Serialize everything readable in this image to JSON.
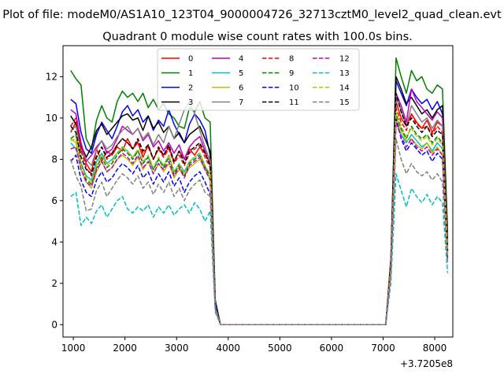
{
  "chart_data": {
    "type": "line",
    "suptitle": "Plot of file: modeM0/AS1A10_123T04_9000004726_32713cztM0_level2_quad_clean.evt",
    "title": "Quadrant 0 module wise count rates with 100.0s bins.",
    "xlabel": "",
    "ylabel": "",
    "x_offset_label": "+3.7205e8",
    "xlim": [
      800,
      8350
    ],
    "ylim": [
      -0.6,
      13.5
    ],
    "xticks": [
      1000,
      2000,
      3000,
      4000,
      5000,
      6000,
      7000,
      8000
    ],
    "xtick_labels": [
      "1000",
      "2000",
      "3000",
      "4000",
      "5000",
      "6000",
      "7000",
      "8000"
    ],
    "yticks": [
      0,
      2,
      4,
      6,
      8,
      10,
      12
    ],
    "ytick_labels": [
      "0",
      "2",
      "4",
      "6",
      "8",
      "10",
      "12"
    ],
    "grid": false,
    "legend": {
      "placement": "top-center",
      "columns": 4
    },
    "x": [
      950,
      1050,
      1150,
      1250,
      1350,
      1450,
      1550,
      1650,
      1750,
      1850,
      1950,
      2050,
      2150,
      2250,
      2350,
      2450,
      2550,
      2650,
      2750,
      2850,
      2950,
      3050,
      3150,
      3250,
      3350,
      3450,
      3550,
      3650,
      3750,
      3850,
      7050,
      7150,
      7250,
      7350,
      7450,
      7550,
      7650,
      7750,
      7850,
      7950,
      8050,
      8150,
      8250
    ],
    "series": [
      {
        "name": "0",
        "color": "#ff0000",
        "dash": "solid",
        "values": [
          9.3,
          9.8,
          8.6,
          7.8,
          7.4,
          8.5,
          7.9,
          8.4,
          8.2,
          8.6,
          8.4,
          9.0,
          8.5,
          8.8,
          8.1,
          8.7,
          8.0,
          8.5,
          8.2,
          8.6,
          7.9,
          8.4,
          8.0,
          8.5,
          8.2,
          8.6,
          8.3,
          7.8,
          0.8,
          0.0,
          0.0,
          3.0,
          10.8,
          10.0,
          9.6,
          10.2,
          9.8,
          9.5,
          9.9,
          9.3,
          9.8,
          9.6,
          3.5
        ]
      },
      {
        "name": "1",
        "color": "#008000",
        "dash": "solid",
        "values": [
          12.3,
          11.9,
          11.6,
          9.0,
          8.5,
          9.9,
          10.6,
          10.0,
          9.8,
          10.8,
          11.3,
          11.0,
          11.2,
          10.8,
          11.2,
          10.5,
          10.9,
          10.4,
          10.7,
          10.2,
          10.0,
          9.6,
          9.5,
          10.5,
          10.3,
          10.8,
          10.0,
          9.8,
          1.2,
          0.0,
          0.0,
          2.8,
          12.9,
          12.0,
          11.2,
          12.3,
          11.8,
          12.0,
          11.4,
          11.2,
          11.6,
          11.4,
          4.5
        ]
      },
      {
        "name": "2",
        "color": "#0000ff",
        "dash": "solid",
        "values": [
          10.9,
          10.7,
          9.3,
          8.5,
          8.3,
          9.2,
          9.8,
          9.4,
          9.0,
          9.6,
          10.3,
          10.6,
          10.1,
          10.4,
          9.8,
          10.1,
          9.4,
          9.9,
          9.6,
          10.4,
          9.7,
          9.2,
          8.8,
          9.7,
          10.2,
          9.9,
          9.4,
          8.2,
          1.1,
          0.0,
          0.0,
          2.9,
          11.8,
          11.2,
          10.6,
          11.4,
          11.0,
          10.7,
          10.9,
          10.4,
          10.8,
          10.2,
          4.0
        ]
      },
      {
        "name": "3",
        "color": "#000000",
        "dash": "solid",
        "values": [
          10.1,
          9.7,
          8.7,
          8.1,
          8.6,
          9.4,
          9.7,
          9.2,
          9.5,
          9.8,
          10.1,
          10.2,
          9.9,
          10.0,
          9.4,
          10.1,
          9.5,
          9.8,
          9.3,
          9.6,
          9.0,
          9.3,
          8.8,
          9.2,
          9.4,
          9.6,
          9.0,
          8.4,
          1.0,
          0.0,
          0.0,
          3.2,
          12.0,
          11.4,
          10.7,
          11.0,
          10.6,
          10.2,
          10.4,
          10.0,
          10.4,
          10.6,
          4.2
        ]
      },
      {
        "name": "4",
        "color": "#bf00bf",
        "dash": "solid",
        "values": [
          10.4,
          10.2,
          8.8,
          7.9,
          8.2,
          8.6,
          8.9,
          8.3,
          8.5,
          9.0,
          9.6,
          9.4,
          9.2,
          9.5,
          8.9,
          9.2,
          8.6,
          8.9,
          8.4,
          8.8,
          8.3,
          8.7,
          8.0,
          8.6,
          8.9,
          9.1,
          8.4,
          8.0,
          0.9,
          0.0,
          0.0,
          2.9,
          11.2,
          10.6,
          9.8,
          11.4,
          10.8,
          10.5,
          10.2,
          9.9,
          10.3,
          10.0,
          3.9
        ]
      },
      {
        "name": "5",
        "color": "#00bfbf",
        "dash": "solid",
        "values": [
          8.8,
          8.5,
          7.8,
          7.2,
          7.0,
          7.9,
          8.3,
          7.8,
          8.0,
          8.3,
          8.6,
          8.4,
          8.1,
          8.4,
          7.9,
          8.1,
          7.5,
          8.0,
          7.7,
          8.2,
          7.4,
          7.8,
          7.4,
          7.9,
          8.1,
          8.3,
          7.7,
          7.0,
          0.8,
          0.0,
          0.0,
          2.6,
          9.8,
          9.2,
          8.8,
          9.2,
          8.9,
          8.6,
          8.8,
          8.4,
          8.8,
          8.5,
          3.3
        ]
      },
      {
        "name": "6",
        "color": "#bfbf00",
        "dash": "solid",
        "values": [
          9.0,
          8.8,
          7.5,
          6.9,
          6.6,
          7.4,
          7.9,
          7.4,
          7.6,
          8.0,
          8.2,
          8.0,
          7.7,
          8.1,
          7.5,
          7.9,
          7.3,
          7.8,
          7.4,
          7.8,
          7.1,
          7.5,
          7.2,
          7.6,
          7.8,
          8.0,
          7.5,
          7.1,
          0.8,
          0.0,
          0.0,
          2.7,
          10.0,
          9.4,
          8.9,
          9.0,
          8.7,
          8.5,
          8.8,
          8.3,
          8.6,
          8.2,
          3.4
        ]
      },
      {
        "name": "7",
        "color": "#808080",
        "dash": "solid",
        "values": [
          9.4,
          9.6,
          8.4,
          8.0,
          7.7,
          8.5,
          8.9,
          8.5,
          8.7,
          9.1,
          9.4,
          9.6,
          9.2,
          9.5,
          9.0,
          9.3,
          8.7,
          9.2,
          8.8,
          9.6,
          9.0,
          9.7,
          10.4,
          10.8,
          10.2,
          9.4,
          8.6,
          7.9,
          0.9,
          0.0,
          0.0,
          3.0,
          11.0,
          10.4,
          9.6,
          10.6,
          10.2,
          9.8,
          10.0,
          9.5,
          9.9,
          9.6,
          3.8
        ]
      },
      {
        "name": "8",
        "color": "#ff0000",
        "dash": "dashed",
        "values": [
          9.6,
          10.0,
          8.4,
          7.6,
          7.2,
          8.2,
          8.6,
          8.0,
          8.3,
          8.7,
          9.0,
          8.8,
          8.5,
          8.9,
          8.3,
          8.6,
          8.0,
          8.5,
          8.1,
          8.5,
          7.8,
          8.2,
          7.7,
          8.3,
          8.5,
          8.7,
          8.1,
          7.6,
          0.8,
          0.0,
          0.0,
          2.9,
          10.5,
          9.8,
          9.4,
          10.2,
          9.7,
          9.5,
          9.6,
          9.2,
          9.6,
          9.3,
          3.6
        ]
      },
      {
        "name": "9",
        "color": "#008000",
        "dash": "dashed",
        "values": [
          9.0,
          9.2,
          7.8,
          7.0,
          6.8,
          7.6,
          8.1,
          7.6,
          7.8,
          8.2,
          8.5,
          8.3,
          8.0,
          8.4,
          7.8,
          8.1,
          7.5,
          8.0,
          7.6,
          8.1,
          7.3,
          7.7,
          7.2,
          7.8,
          8.0,
          8.2,
          7.6,
          7.2,
          0.8,
          0.0,
          0.0,
          2.7,
          10.2,
          9.5,
          9.0,
          9.6,
          9.2,
          9.0,
          9.2,
          8.8,
          9.1,
          8.8,
          3.5
        ]
      },
      {
        "name": "10",
        "color": "#0000ff",
        "dash": "dashed",
        "values": [
          7.9,
          8.2,
          7.0,
          6.4,
          6.2,
          7.0,
          7.4,
          6.9,
          7.1,
          7.5,
          7.8,
          7.6,
          7.3,
          7.7,
          7.1,
          7.4,
          6.8,
          7.3,
          6.9,
          7.4,
          6.7,
          7.1,
          6.4,
          6.9,
          7.2,
          7.4,
          6.9,
          6.3,
          0.7,
          0.0,
          0.0,
          2.5,
          10.0,
          9.0,
          8.4,
          8.8,
          8.5,
          8.2,
          8.4,
          7.9,
          8.3,
          8.0,
          3.1
        ]
      },
      {
        "name": "11",
        "color": "#000000",
        "dash": "dashed",
        "values": [
          9.6,
          9.3,
          8.1,
          7.5,
          7.3,
          8.1,
          8.6,
          8.1,
          8.3,
          8.7,
          9.0,
          8.8,
          8.5,
          9.0,
          8.4,
          8.7,
          8.0,
          8.6,
          8.2,
          8.7,
          7.9,
          8.4,
          7.8,
          8.4,
          8.6,
          8.8,
          8.3,
          7.7,
          0.9,
          0.0,
          0.0,
          2.9,
          11.2,
          10.3,
          9.6,
          10.0,
          9.6,
          9.3,
          9.6,
          9.1,
          9.4,
          9.2,
          3.6
        ]
      },
      {
        "name": "12",
        "color": "#bf00bf",
        "dash": "dashed",
        "values": [
          8.5,
          8.6,
          7.5,
          6.9,
          6.7,
          7.5,
          7.9,
          7.4,
          7.6,
          8.0,
          8.3,
          8.1,
          7.8,
          8.2,
          7.6,
          7.9,
          7.3,
          7.8,
          7.5,
          7.9,
          7.2,
          7.6,
          7.1,
          7.7,
          7.9,
          8.1,
          7.5,
          7.0,
          0.8,
          0.0,
          0.0,
          2.6,
          9.8,
          9.1,
          8.6,
          9.0,
          8.6,
          8.4,
          8.6,
          8.2,
          8.5,
          8.2,
          3.2
        ]
      },
      {
        "name": "13",
        "color": "#00bfbf",
        "dash": "dashed",
        "values": [
          6.2,
          6.4,
          4.8,
          5.2,
          4.9,
          5.5,
          5.8,
          5.2,
          5.6,
          6.0,
          6.2,
          5.6,
          5.4,
          5.7,
          5.5,
          5.8,
          5.2,
          5.7,
          5.4,
          5.8,
          5.3,
          5.6,
          5.8,
          5.4,
          5.9,
          5.6,
          5.0,
          5.5,
          0.6,
          0.0,
          0.0,
          2.0,
          7.3,
          6.5,
          5.7,
          6.6,
          6.2,
          5.9,
          6.3,
          5.8,
          6.2,
          5.9,
          2.5
        ]
      },
      {
        "name": "14",
        "color": "#bfbf00",
        "dash": "dashed",
        "values": [
          8.9,
          9.0,
          7.7,
          7.1,
          6.9,
          7.7,
          8.2,
          7.7,
          7.9,
          8.3,
          8.6,
          8.4,
          8.1,
          8.5,
          7.9,
          8.2,
          7.6,
          8.1,
          7.7,
          8.2,
          7.4,
          7.8,
          7.3,
          7.9,
          8.1,
          8.3,
          7.7,
          7.3,
          0.8,
          0.0,
          0.0,
          2.7,
          10.3,
          9.6,
          9.1,
          9.5,
          9.1,
          8.9,
          9.1,
          8.7,
          9.0,
          8.7,
          3.4
        ]
      },
      {
        "name": "15",
        "color": "#808080",
        "dash": "dashed",
        "values": [
          8.0,
          7.2,
          6.7,
          5.5,
          5.6,
          6.5,
          6.9,
          6.2,
          6.6,
          7.0,
          7.3,
          7.1,
          6.8,
          7.2,
          6.6,
          6.9,
          6.3,
          6.8,
          6.4,
          6.9,
          6.2,
          6.6,
          6.0,
          6.5,
          6.8,
          7.0,
          6.4,
          6.2,
          0.7,
          0.0,
          0.0,
          2.3,
          9.0,
          8.0,
          7.3,
          7.8,
          7.4,
          7.2,
          7.4,
          7.0,
          7.3,
          6.9,
          2.9
        ]
      }
    ]
  }
}
